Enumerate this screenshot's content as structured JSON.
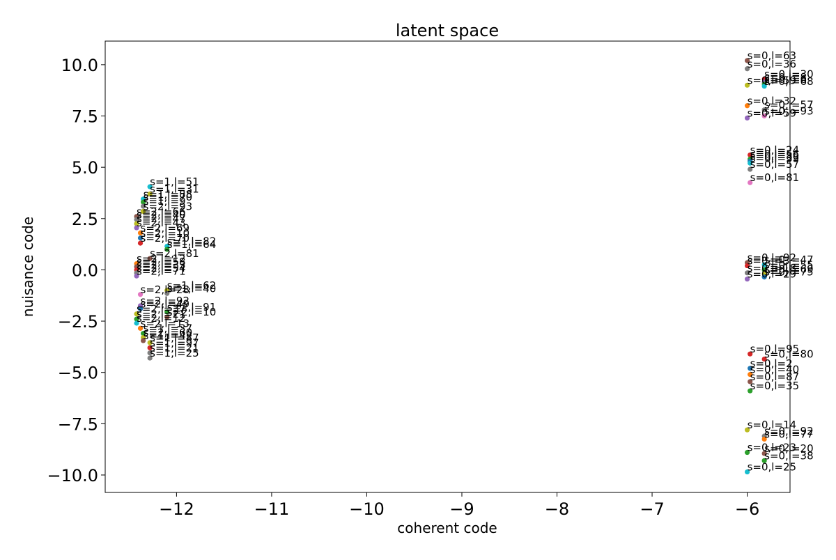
{
  "chart_data": {
    "type": "scatter",
    "title": "latent space",
    "xlabel": "coherent code",
    "ylabel": "nuisance code",
    "xlim": [
      -12.75,
      -5.55
    ],
    "ylim": [
      -10.85,
      11.15
    ],
    "xticks": [
      -12,
      -11,
      -10,
      -9,
      -8,
      -7,
      -6
    ],
    "yticks": [
      -10.0,
      -7.5,
      -5.0,
      -2.5,
      0.0,
      2.5,
      5.0,
      7.5,
      10.0
    ],
    "xtick_labels": [
      "−12",
      "−11",
      "−10",
      "−9",
      "−8",
      "−7",
      "−6"
    ],
    "ytick_labels": [
      "−10.0",
      "−7.5",
      "−5.0",
      "−2.5",
      "0.0",
      "2.5",
      "5.0",
      "7.5",
      "10.0"
    ],
    "grid": false,
    "legend": "none",
    "palette": [
      "#1f77b4",
      "#ff7f0e",
      "#2ca02c",
      "#d62728",
      "#9467bd",
      "#8c564b",
      "#e377c2",
      "#7f7f7f",
      "#bcbd22",
      "#17becf"
    ],
    "points": [
      {
        "x": -6.0,
        "y": 10.2,
        "label": "s=0,l=63",
        "color": "#8c564b"
      },
      {
        "x": -6.0,
        "y": 9.8,
        "label": "s=0,l=36",
        "color": "#7f7f7f"
      },
      {
        "x": -5.82,
        "y": 9.3,
        "label": "s=0,l=30",
        "color": "#d62728"
      },
      {
        "x": -5.82,
        "y": 9.15,
        "label": "s=0,l=8",
        "color": "#9467bd"
      },
      {
        "x": -5.82,
        "y": 9.05,
        "label": "s=0,l=6",
        "color": "#2ca02c"
      },
      {
        "x": -5.82,
        "y": 8.95,
        "label": "s=0,l=68",
        "color": "#17becf"
      },
      {
        "x": -6.0,
        "y": 9.0,
        "label": "s=0,l=59",
        "color": "#bcbd22"
      },
      {
        "x": -6.0,
        "y": 8.0,
        "label": "s=0,l=32",
        "color": "#ff7f0e"
      },
      {
        "x": -5.82,
        "y": 7.8,
        "label": "s=0,l=57",
        "color": "#7f7f7f"
      },
      {
        "x": -5.82,
        "y": 7.5,
        "label": "s=0,l=93",
        "color": "#e377c2"
      },
      {
        "x": -6.0,
        "y": 7.4,
        "label": "s=0,l=59",
        "color": "#9467bd"
      },
      {
        "x": -5.97,
        "y": 5.6,
        "label": "s=0,l=24",
        "color": "#d62728"
      },
      {
        "x": -5.97,
        "y": 5.4,
        "label": "s=0,l=56",
        "color": "#2ca02c"
      },
      {
        "x": -5.97,
        "y": 5.3,
        "label": "s=0,l=89",
        "color": "#1f77b4"
      },
      {
        "x": -5.97,
        "y": 5.2,
        "label": "s=0,l=39",
        "color": "#17becf"
      },
      {
        "x": -5.97,
        "y": 4.9,
        "label": "s=0,l=57",
        "color": "#7f7f7f"
      },
      {
        "x": -5.97,
        "y": 4.25,
        "label": "s=0,l=81",
        "color": "#e377c2"
      },
      {
        "x": -6.0,
        "y": 0.35,
        "label": "s=0,l=92",
        "color": "#8c564b"
      },
      {
        "x": -6.0,
        "y": 0.2,
        "label": "s=0,l=3",
        "color": "#d62728"
      },
      {
        "x": -5.82,
        "y": 0.25,
        "label": "s=0,l=47",
        "color": "#17becf"
      },
      {
        "x": -5.82,
        "y": 0.0,
        "label": "s=0,l=55",
        "color": "#2ca02c"
      },
      {
        "x": -5.82,
        "y": -0.2,
        "label": "s=0,l=69",
        "color": "#bcbd22"
      },
      {
        "x": -6.0,
        "y": -0.15,
        "label": "s=0,l=18",
        "color": "#7f7f7f"
      },
      {
        "x": -6.0,
        "y": -0.45,
        "label": "s=0,l=29",
        "color": "#9467bd"
      },
      {
        "x": -5.82,
        "y": -0.35,
        "label": "s=0,l=75",
        "color": "#1f77b4"
      },
      {
        "x": -5.97,
        "y": -4.1,
        "label": "s=0,l=95",
        "color": "#d62728"
      },
      {
        "x": -5.82,
        "y": -4.35,
        "label": "s=0,l=80",
        "color": "#d62728"
      },
      {
        "x": -5.97,
        "y": -4.8,
        "label": "s=0,l=2",
        "color": "#1f77b4"
      },
      {
        "x": -5.97,
        "y": -5.1,
        "label": "s=0,l=40",
        "color": "#ff7f0e"
      },
      {
        "x": -5.97,
        "y": -5.45,
        "label": "s=0,l=87",
        "color": "#8c564b"
      },
      {
        "x": -5.97,
        "y": -5.9,
        "label": "s=0,l=35",
        "color": "#2ca02c"
      },
      {
        "x": -6.0,
        "y": -7.8,
        "label": "s=0,l=14",
        "color": "#bcbd22"
      },
      {
        "x": -5.82,
        "y": -8.1,
        "label": "s=0,l=92",
        "color": "#7f7f7f"
      },
      {
        "x": -5.82,
        "y": -8.25,
        "label": "s=0,l=77",
        "color": "#ff7f0e"
      },
      {
        "x": -6.0,
        "y": -8.9,
        "label": "s=0,l=23",
        "color": "#2ca02c"
      },
      {
        "x": -5.82,
        "y": -8.95,
        "label": "s=0,l=20",
        "color": "#8c564b"
      },
      {
        "x": -5.82,
        "y": -9.3,
        "label": "s=0,l=38",
        "color": "#2ca02c"
      },
      {
        "x": -6.0,
        "y": -9.85,
        "label": "s=0,l=25",
        "color": "#17becf"
      },
      {
        "x": -12.28,
        "y": 4.05,
        "label": "s=1,l=51",
        "color": "#17becf"
      },
      {
        "x": -12.28,
        "y": 3.7,
        "label": "s=1,l=31",
        "color": "#bcbd22"
      },
      {
        "x": -12.35,
        "y": 3.45,
        "label": "s=1,l=88",
        "color": "#17becf"
      },
      {
        "x": -12.35,
        "y": 3.3,
        "label": "s=1,l=70",
        "color": "#2ca02c"
      },
      {
        "x": -12.35,
        "y": 3.1,
        "label": "s=1,l=9",
        "color": "#7f7f7f"
      },
      {
        "x": -12.35,
        "y": 2.85,
        "label": "s=2,l=93",
        "color": "#bcbd22"
      },
      {
        "x": -12.42,
        "y": 2.6,
        "label": "s=2,l=66",
        "color": "#8c564b"
      },
      {
        "x": -12.42,
        "y": 2.45,
        "label": "s=2,l=40",
        "color": "#7f7f7f"
      },
      {
        "x": -12.42,
        "y": 2.25,
        "label": "s=2,l=47",
        "color": "#bcbd22"
      },
      {
        "x": -12.42,
        "y": 2.05,
        "label": "s=2,l=43",
        "color": "#9467bd"
      },
      {
        "x": -12.38,
        "y": 1.8,
        "label": "s=2,l=69",
        "color": "#ff7f0e"
      },
      {
        "x": -12.38,
        "y": 1.55,
        "label": "s=2,l=10",
        "color": "#1f77b4"
      },
      {
        "x": -12.38,
        "y": 1.3,
        "label": "s=2,l=70",
        "color": "#d62728"
      },
      {
        "x": -12.1,
        "y": 1.15,
        "label": "s=1,l=82",
        "color": "#17becf"
      },
      {
        "x": -12.1,
        "y": 1.0,
        "label": "s=1,l=64",
        "color": "#2ca02c"
      },
      {
        "x": -12.28,
        "y": 0.55,
        "label": "s=2,l=81",
        "color": "#8c564b"
      },
      {
        "x": -12.42,
        "y": 0.3,
        "label": "s=2,l=12",
        "color": "#ff7f0e"
      },
      {
        "x": -12.42,
        "y": 0.15,
        "label": "s=2,l=58",
        "color": "#8c564b"
      },
      {
        "x": -12.42,
        "y": 0.0,
        "label": "s=2,l=33",
        "color": "#d62728"
      },
      {
        "x": -12.42,
        "y": -0.15,
        "label": "s=2,l=54",
        "color": "#7f7f7f"
      },
      {
        "x": -12.42,
        "y": -0.3,
        "label": "s=2,l=71",
        "color": "#9467bd"
      },
      {
        "x": -12.1,
        "y": -1.0,
        "label": "s=1,l=62",
        "color": "#bcbd22"
      },
      {
        "x": -12.1,
        "y": -1.15,
        "label": "s=1,l=40",
        "color": "#7f7f7f"
      },
      {
        "x": -12.38,
        "y": -1.2,
        "label": "s=2,l=28",
        "color": "#e377c2"
      },
      {
        "x": -12.38,
        "y": -1.75,
        "label": "s=2,l=92",
        "color": "#9467bd"
      },
      {
        "x": -12.38,
        "y": -1.9,
        "label": "s=2,l=49",
        "color": "#1f77b4"
      },
      {
        "x": -12.1,
        "y": -2.05,
        "label": "s=2,l=91",
        "color": "#2ca02c"
      },
      {
        "x": -12.1,
        "y": -2.3,
        "label": "s=2,l=10",
        "color": "#8c564b"
      },
      {
        "x": -12.42,
        "y": -2.15,
        "label": "s=2,l=37",
        "color": "#bcbd22"
      },
      {
        "x": -12.42,
        "y": -2.4,
        "label": "s=2,l=21",
        "color": "#2ca02c"
      },
      {
        "x": -12.42,
        "y": -2.6,
        "label": "s=2,l=12",
        "color": "#17becf"
      },
      {
        "x": -12.38,
        "y": -2.85,
        "label": "s=2,l=13",
        "color": "#ff7f0e"
      },
      {
        "x": -12.35,
        "y": -3.1,
        "label": "s=1,l=37",
        "color": "#2ca02c"
      },
      {
        "x": -12.35,
        "y": -3.3,
        "label": "s=2,l=60",
        "color": "#bcbd22"
      },
      {
        "x": -12.35,
        "y": -3.45,
        "label": "s=1,l=42",
        "color": "#8c564b"
      },
      {
        "x": -12.28,
        "y": -3.55,
        "label": "s=1,l=87",
        "color": "#bcbd22"
      },
      {
        "x": -12.28,
        "y": -3.8,
        "label": "s=1,l=97",
        "color": "#d62728"
      },
      {
        "x": -12.28,
        "y": -4.05,
        "label": "s=1,l=21",
        "color": "#7f7f7f"
      },
      {
        "x": -12.28,
        "y": -4.3,
        "label": "s=1,l=25",
        "color": "#7f7f7f"
      }
    ]
  }
}
